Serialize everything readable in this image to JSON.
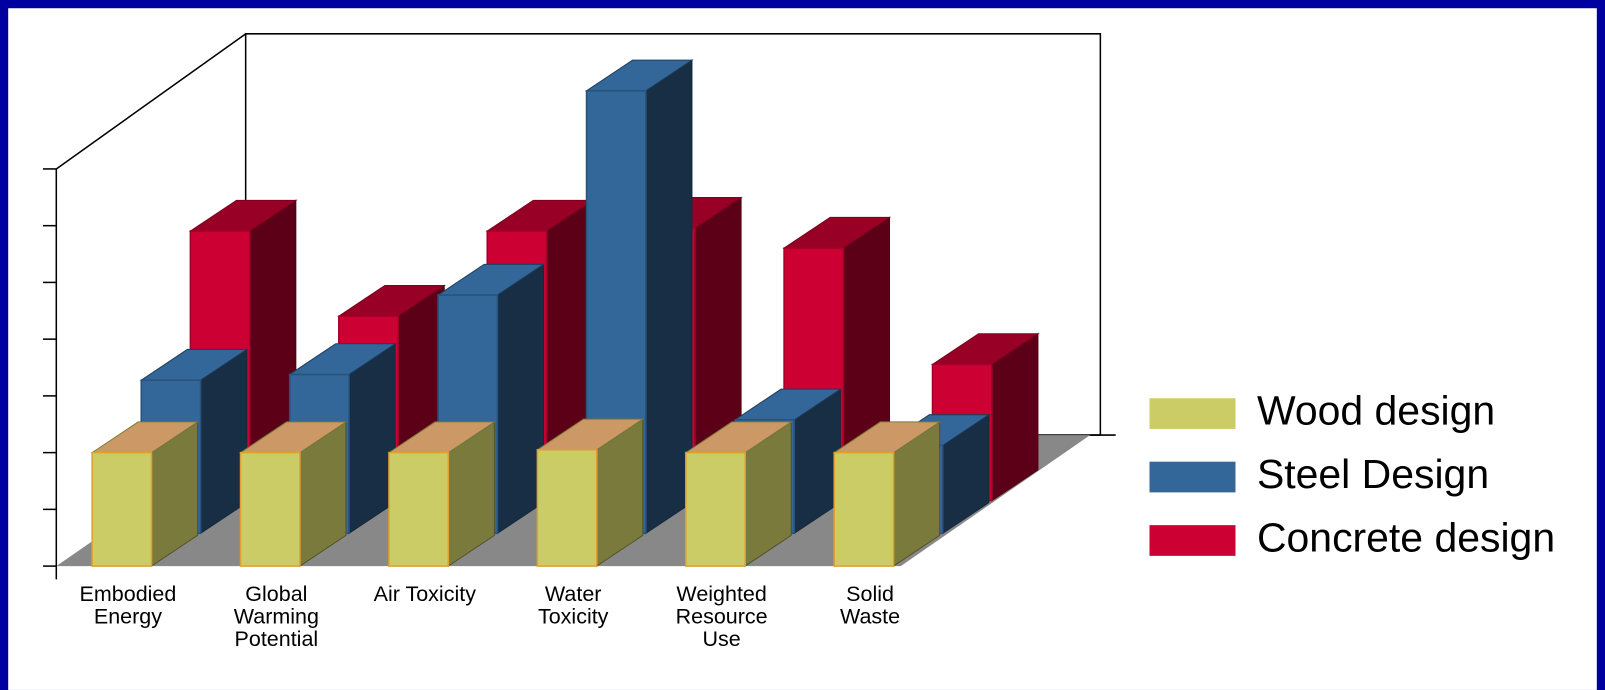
{
  "chart_data": {
    "type": "bar3d",
    "categories": [
      "Embodied Energy",
      "Global Warming Potential",
      "Air Toxicity",
      "Water Toxicity",
      "Weighted Resource Use",
      "Solid Waste"
    ],
    "series": [
      {
        "name": "Wood design",
        "color": "#cccc66",
        "values": [
          2.0,
          2.0,
          2.0,
          2.05,
          2.0,
          2.0
        ]
      },
      {
        "name": "Steel Design",
        "color": "#336699",
        "values": [
          2.7,
          2.8,
          4.2,
          7.8,
          2.0,
          1.55
        ]
      },
      {
        "name": "Concrete design",
        "color": "#cc0033",
        "values": [
          4.75,
          3.25,
          4.75,
          4.8,
          4.45,
          2.4
        ]
      }
    ],
    "ylim": [
      0,
      7
    ],
    "yticks": [
      0,
      1,
      2,
      3,
      4,
      5,
      6,
      7
    ],
    "legend": "right"
  }
}
